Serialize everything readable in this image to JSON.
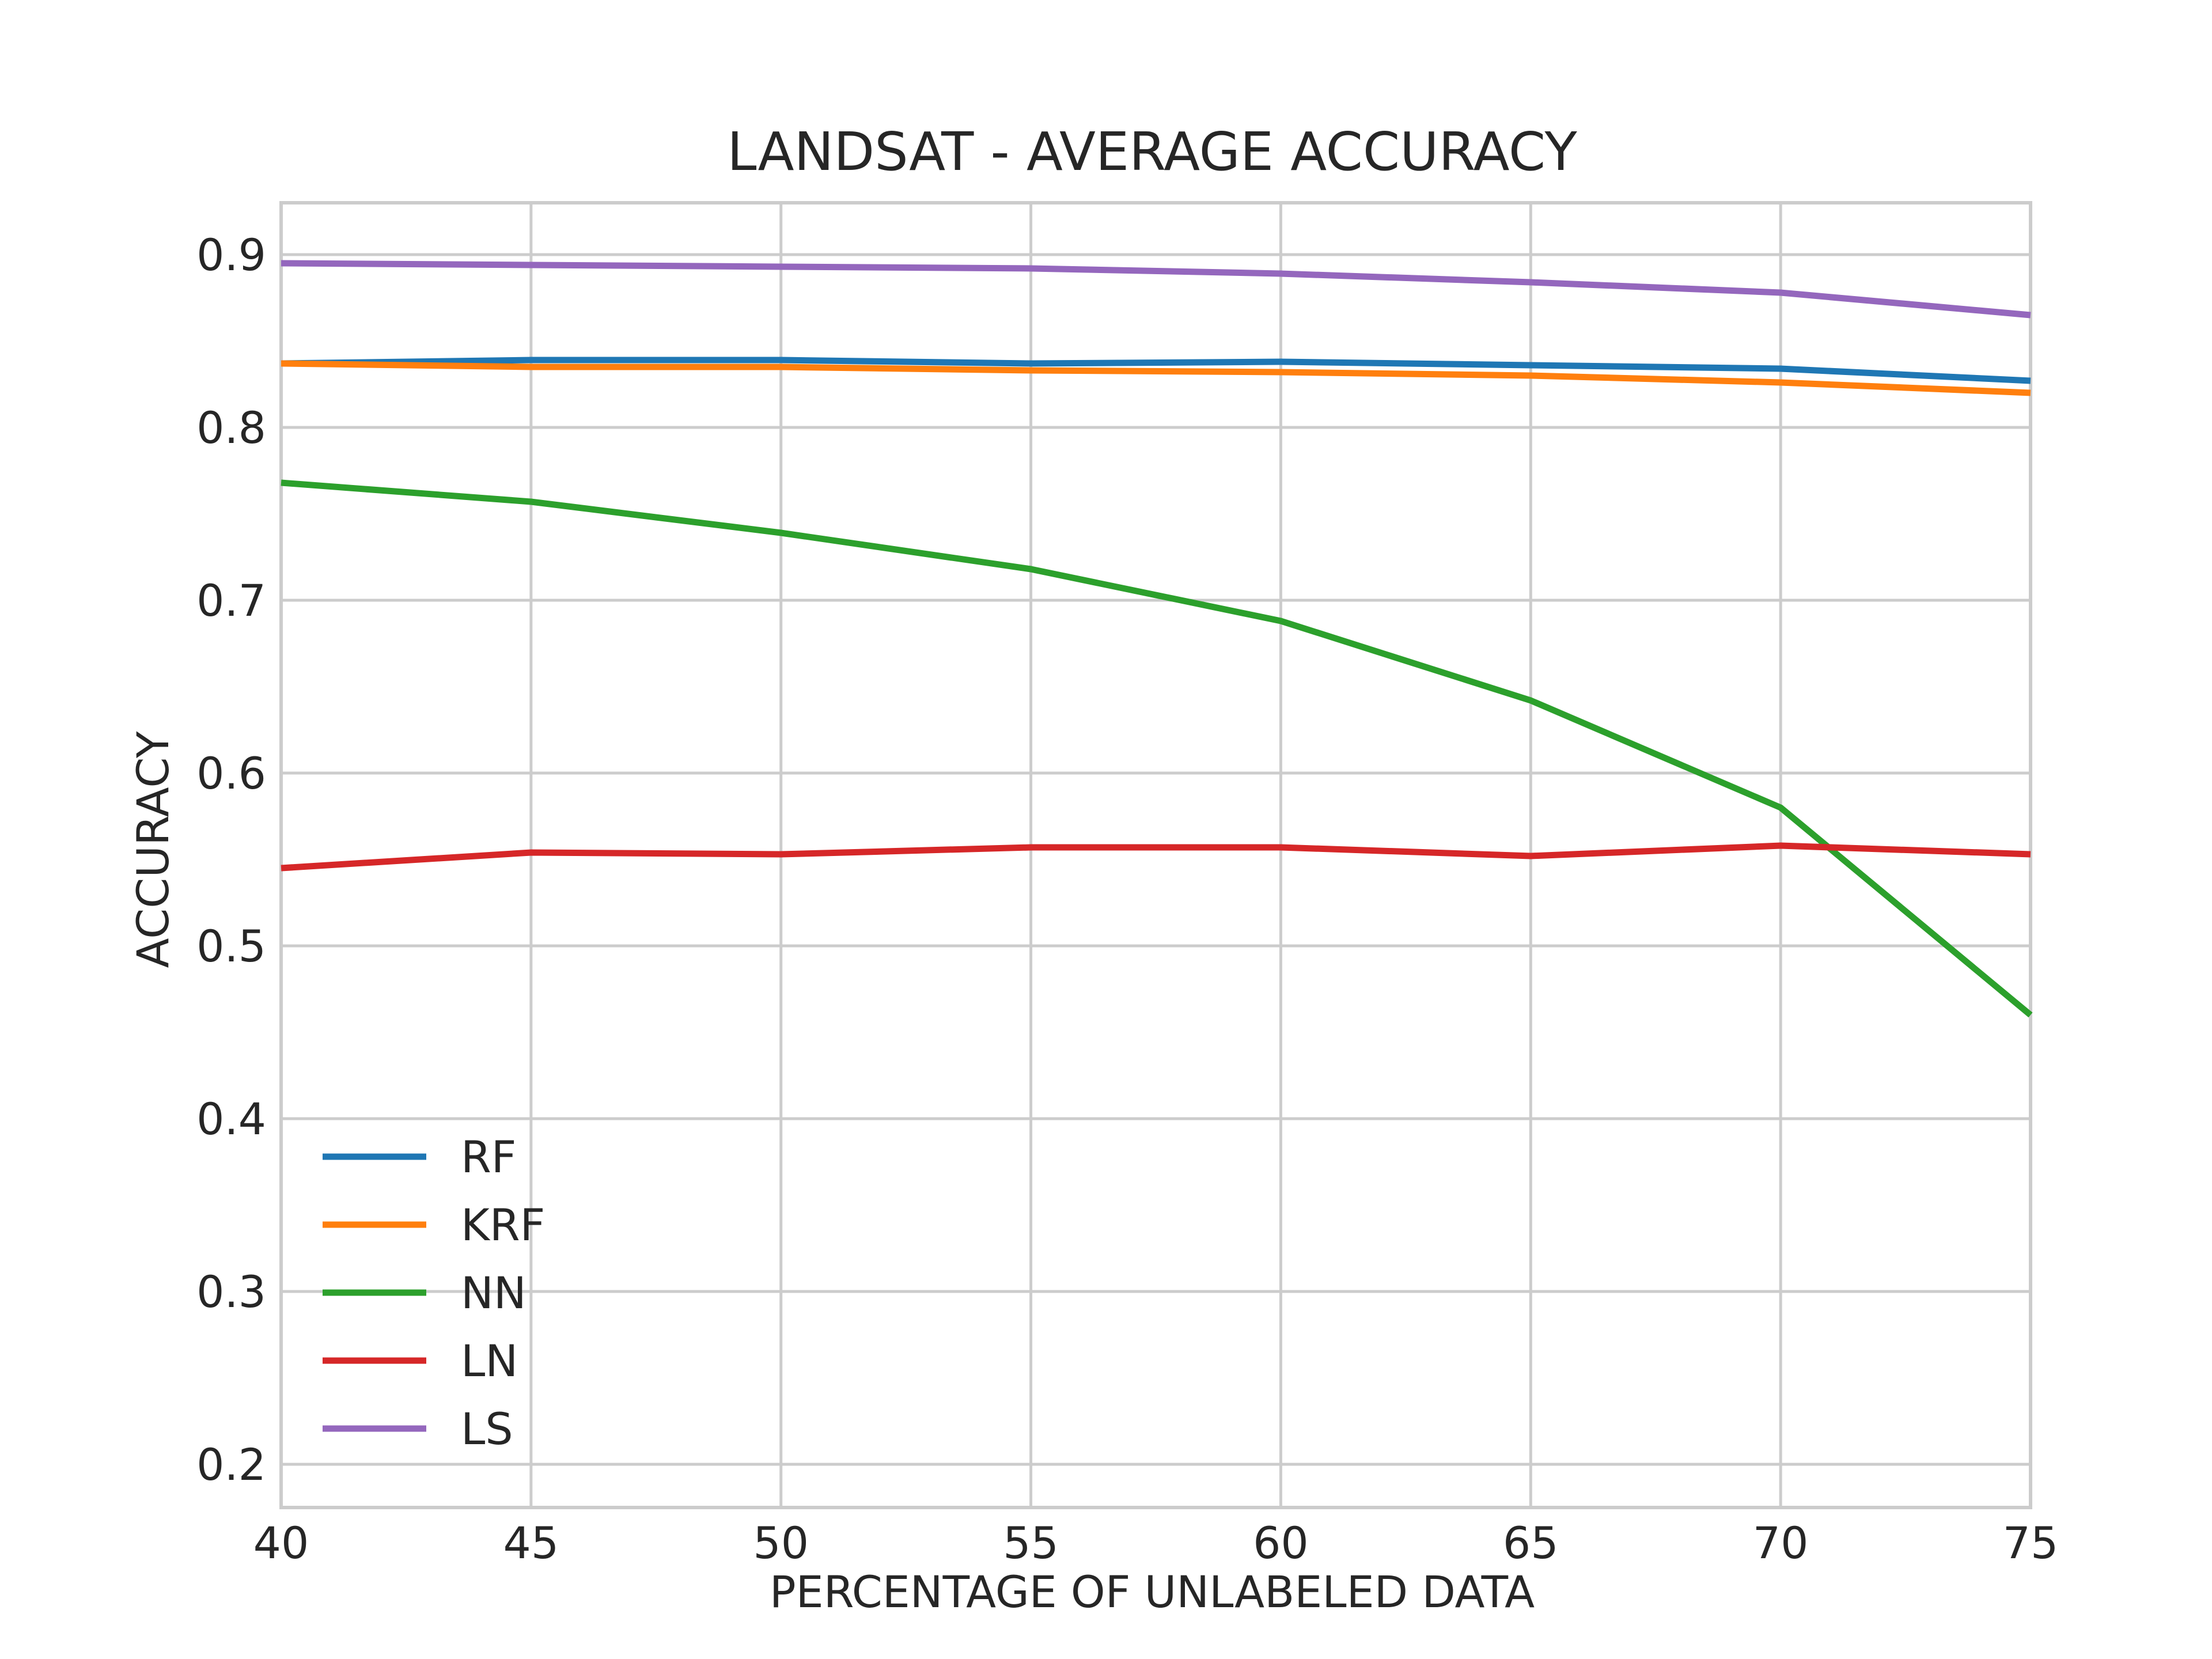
{
  "chart_data": {
    "type": "line",
    "title": "LANDSAT - AVERAGE ACCURACY",
    "xlabel": "PERCENTAGE OF UNLABELED DATA",
    "ylabel": "ACCURACY",
    "x": [
      40,
      45,
      50,
      55,
      60,
      65,
      70,
      75
    ],
    "xlim": [
      40,
      75
    ],
    "ylim": [
      0.175,
      0.93
    ],
    "xticks": [
      "40",
      "45",
      "50",
      "55",
      "60",
      "65",
      "70",
      "75"
    ],
    "yticks": [
      "0.2",
      "0.3",
      "0.4",
      "0.5",
      "0.6",
      "0.7",
      "0.8",
      "0.9"
    ],
    "grid": true,
    "legend_position": "lower-left",
    "series": [
      {
        "name": "RF",
        "color": "#1f77b4",
        "values": [
          0.837,
          0.839,
          0.839,
          0.837,
          0.838,
          0.836,
          0.834,
          0.827
        ]
      },
      {
        "name": "KRF",
        "color": "#ff7f0e",
        "values": [
          0.837,
          0.835,
          0.835,
          0.833,
          0.832,
          0.83,
          0.826,
          0.82
        ]
      },
      {
        "name": "NN",
        "color": "#2ca02c",
        "values": [
          0.768,
          0.757,
          0.739,
          0.718,
          0.688,
          0.642,
          0.58,
          0.46
        ]
      },
      {
        "name": "LN",
        "color": "#d62728",
        "values": [
          0.545,
          0.554,
          0.553,
          0.557,
          0.557,
          0.552,
          0.558,
          0.553
        ]
      },
      {
        "name": "LS",
        "color": "#9467bd",
        "values": [
          0.895,
          0.894,
          0.893,
          0.892,
          0.889,
          0.884,
          0.878,
          0.865
        ]
      }
    ]
  }
}
